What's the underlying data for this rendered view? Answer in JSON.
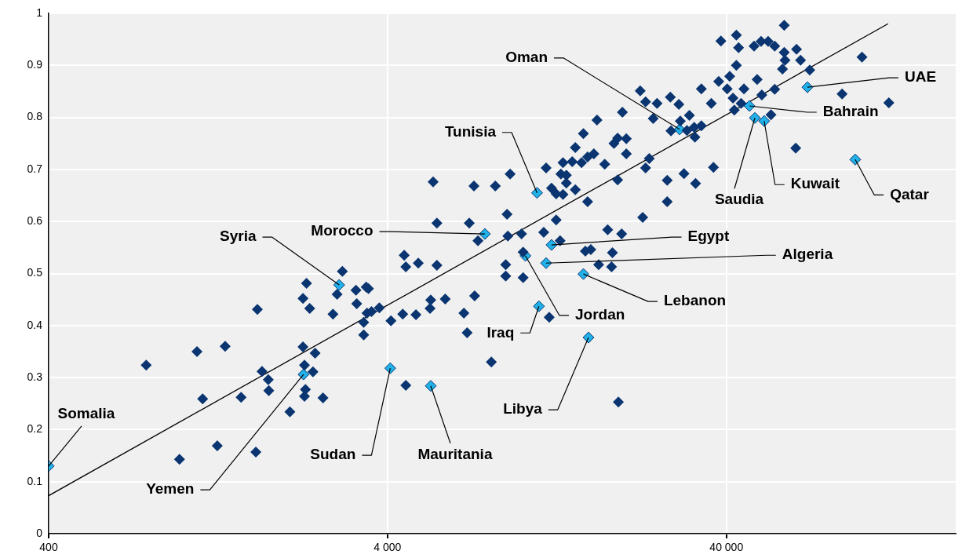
{
  "chart_data": {
    "type": "scatter",
    "marker": "diamond",
    "grid": true,
    "legend": false,
    "xlim": [
      400,
      190000
    ],
    "ylim": [
      0,
      1
    ],
    "log": "x",
    "xticks": [
      {
        "value": 400,
        "label": "400"
      },
      {
        "value": 4000,
        "label": "4 000"
      },
      {
        "value": 40000,
        "label": "40 000"
      }
    ],
    "yticks": [
      0,
      0.1,
      0.2,
      0.3,
      0.4,
      0.5,
      0.6,
      0.7,
      0.8,
      0.9,
      1
    ],
    "series": [
      {
        "color": "#0a3570",
        "x": [
          776,
          973,
          1096,
          1139,
          1258,
          1327,
          1479,
          1635,
          1652,
          1705,
          1779,
          1785,
          2060,
          2252,
          2252,
          2275,
          2275,
          2290,
          2307,
          2357,
          2410,
          2445,
          2580,
          2761,
          2840,
          2943,
          3228,
          3245,
          3402,
          3402,
          3460,
          3480,
          3514,
          3587,
          3784,
          4095,
          4435,
          4480,
          4530,
          4530,
          4852,
          4930,
          5340,
          5365,
          5454,
          5594,
          5594,
          5920,
          6720,
          6870,
          6970,
          7196,
          7230,
          7395,
          8100,
          8320,
          8930,
          8930,
          9010,
          9060,
          9200,
          9940,
          10050,
          10050,
          11560,
          11750,
          12000,
          12190,
          12580,
          12580,
          12920,
          12990,
          13180,
          13180,
          13480,
          13480,
          14030,
          14330,
          14330,
          14950,
          15140,
          15340,
          15580,
          15580,
          15920,
          16250,
          16600,
          16790,
          17500,
          17850,
          18330,
          18440,
          18630,
          19100,
          19100,
          19200,
          19630,
          19730,
          20260,
          20260,
          22270,
          22650,
          23100,
          23100,
          23680,
          24320,
          24970,
          26750,
          26750,
          27330,
          27450,
          28950,
          29240,
          29980,
          30600,
          31100,
          32140,
          32300,
          32440,
          33740,
          33740,
          36100,
          36630,
          37960,
          38540,
          40210,
          40900,
          41820,
          42200,
          42800,
          42800,
          43440,
          44200,
          45060,
          48270,
          49300,
          50620,
          50880,
          53120,
          54150,
          55540,
          55540,
          58550,
          59250,
          59250,
          59560,
          64070,
          64410,
          66200,
          70450,
          87800,
          100500,
          120600
        ],
        "values": [
          0.324,
          0.143,
          0.35,
          0.259,
          0.169,
          0.36,
          0.262,
          0.157,
          0.431,
          0.312,
          0.296,
          0.275,
          0.234,
          0.359,
          0.452,
          0.264,
          0.324,
          0.277,
          0.481,
          0.433,
          0.311,
          0.347,
          0.261,
          0.422,
          0.46,
          0.504,
          0.468,
          0.442,
          0.406,
          0.382,
          0.474,
          0.424,
          0.471,
          0.427,
          0.434,
          0.409,
          0.422,
          0.535,
          0.513,
          0.285,
          0.421,
          0.52,
          0.433,
          0.449,
          0.676,
          0.597,
          0.516,
          0.451,
          0.424,
          0.386,
          0.597,
          0.668,
          0.457,
          0.563,
          0.33,
          0.668,
          0.517,
          0.495,
          0.614,
          0.572,
          0.691,
          0.576,
          0.541,
          0.492,
          0.579,
          0.703,
          0.416,
          0.664,
          0.603,
          0.653,
          0.563,
          0.691,
          0.652,
          0.713,
          0.674,
          0.689,
          0.715,
          0.661,
          0.742,
          0.713,
          0.769,
          0.543,
          0.638,
          0.724,
          0.546,
          0.73,
          0.795,
          0.517,
          0.71,
          0.584,
          0.513,
          0.54,
          0.75,
          0.68,
          0.76,
          0.253,
          0.576,
          0.81,
          0.759,
          0.73,
          0.851,
          0.608,
          0.703,
          0.83,
          0.721,
          0.798,
          0.827,
          0.679,
          0.638,
          0.839,
          0.774,
          0.825,
          0.793,
          0.692,
          0.775,
          0.804,
          0.781,
          0.762,
          0.673,
          0.784,
          0.855,
          0.827,
          0.704,
          0.869,
          0.947,
          0.855,
          0.879,
          0.837,
          0.814,
          0.958,
          0.9,
          0.934,
          0.827,
          0.855,
          0.937,
          0.873,
          0.946,
          0.843,
          0.946,
          0.805,
          0.937,
          0.854,
          0.893,
          0.977,
          0.925,
          0.91,
          0.741,
          0.931,
          0.91,
          0.891,
          0.845,
          0.916,
          0.828
        ]
      },
      {
        "color": "#22b0e8",
        "x": [
          400,
          2260,
          2880,
          4075,
          5365,
          7750,
          11050,
          11190,
          10210,
          12190,
          11750,
          15140,
          15670,
          29100,
          46790,
          48540,
          51700,
          69370,
          96000
        ],
        "values": [
          0.13,
          0.306,
          0.478,
          0.318,
          0.284,
          0.576,
          0.655,
          0.437,
          0.534,
          0.555,
          0.52,
          0.499,
          0.377,
          0.777,
          0.822,
          0.799,
          0.793,
          0.858,
          0.719
        ]
      },
      {
        "type": "line",
        "marker": "none",
        "color": "#000000",
        "x": [
          400,
          120000
        ],
        "values": [
          0.073,
          0.98
        ]
      }
    ],
    "annotations": [
      {
        "text": "Somalia",
        "x": 400,
        "y": 0.13
      },
      {
        "text": "Yemen",
        "x": 2260,
        "y": 0.306
      },
      {
        "text": "Syria",
        "x": 2880,
        "y": 0.478
      },
      {
        "text": "Sudan",
        "x": 4075,
        "y": 0.318
      },
      {
        "text": "Mauritania",
        "x": 5365,
        "y": 0.284
      },
      {
        "text": "Morocco",
        "x": 7750,
        "y": 0.576
      },
      {
        "text": "Tunisia",
        "x": 11050,
        "y": 0.655
      },
      {
        "text": "Iraq",
        "x": 11190,
        "y": 0.437
      },
      {
        "text": "Jordan",
        "x": 10210,
        "y": 0.534
      },
      {
        "text": "Egypt",
        "x": 12190,
        "y": 0.555
      },
      {
        "text": "Algeria",
        "x": 11750,
        "y": 0.52
      },
      {
        "text": "Lebanon",
        "x": 15140,
        "y": 0.499
      },
      {
        "text": "Libya",
        "x": 15670,
        "y": 0.377
      },
      {
        "text": "Oman",
        "x": 29100,
        "y": 0.777
      },
      {
        "text": "Bahrain",
        "x": 46790,
        "y": 0.822
      },
      {
        "text": "Saudia",
        "x": 48540,
        "y": 0.799
      },
      {
        "text": "Kuwait",
        "x": 51700,
        "y": 0.793
      },
      {
        "text": "UAE",
        "x": 69370,
        "y": 0.858
      },
      {
        "text": "Qatar",
        "x": 96000,
        "y": 0.719
      }
    ]
  }
}
